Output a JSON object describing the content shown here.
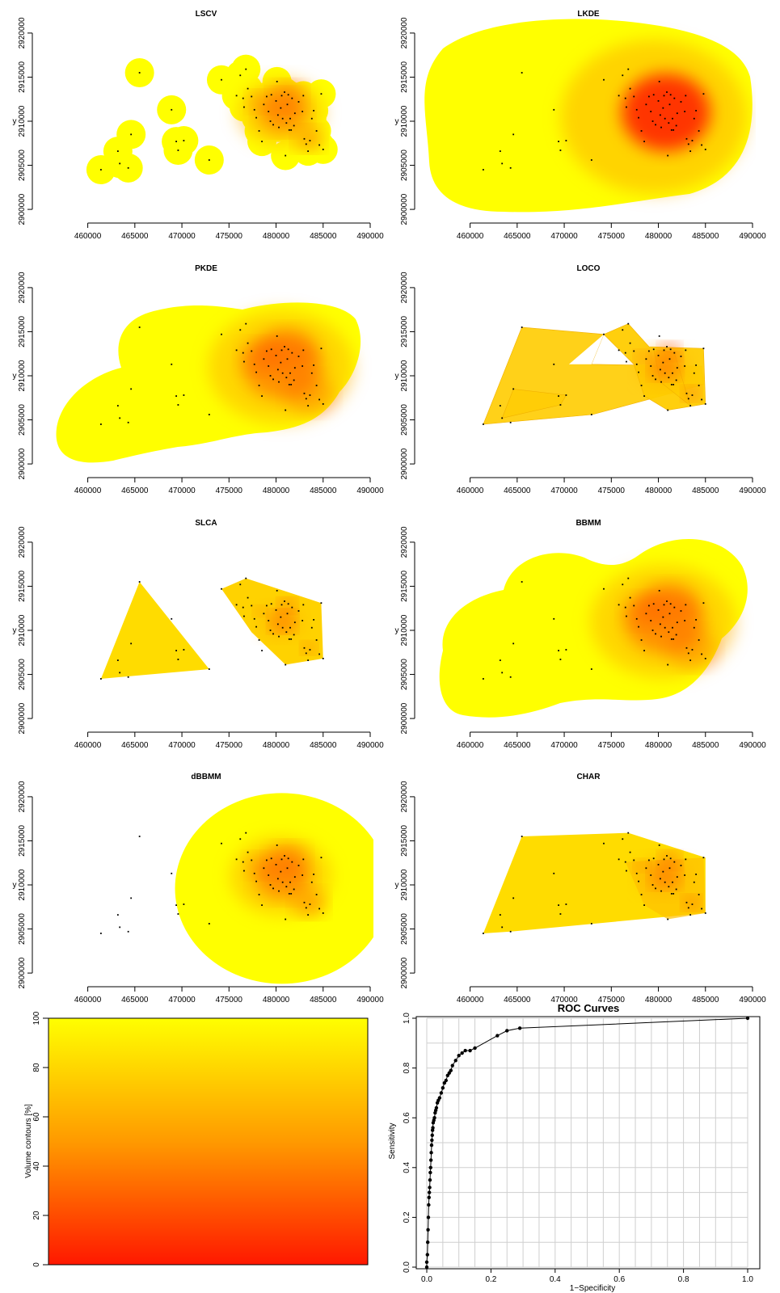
{
  "colors": {
    "low": "#ffff00",
    "mid": "#ffb000",
    "high": "#ff0000",
    "point": "#000000",
    "grid": "#cfcfcf"
  },
  "map_axes": {
    "xlim": [
      456000,
      490000
    ],
    "ylim": [
      2899000,
      2921000
    ],
    "x_ticks": [
      "460000",
      "465000",
      "470000",
      "475000",
      "480000",
      "485000",
      "490000"
    ],
    "y_ticks": [
      "2900000",
      "2905000",
      "2910000",
      "2915000",
      "2920000"
    ],
    "ylabel": "y"
  },
  "points": [
    [
      461400,
      2904500
    ],
    [
      463200,
      2906600
    ],
    [
      463400,
      2905200
    ],
    [
      464300,
      2904700
    ],
    [
      464600,
      2908500
    ],
    [
      465500,
      2915500
    ],
    [
      468900,
      2911300
    ],
    [
      469400,
      2907700
    ],
    [
      469600,
      2906700
    ],
    [
      470200,
      2907800
    ],
    [
      472900,
      2905600
    ],
    [
      474200,
      2914700
    ],
    [
      475800,
      2912900
    ],
    [
      476200,
      2915200
    ],
    [
      476500,
      2912600
    ],
    [
      476600,
      2911600
    ],
    [
      476800,
      2915900
    ],
    [
      477000,
      2913700
    ],
    [
      477400,
      2912800
    ],
    [
      477700,
      2911300
    ],
    [
      477900,
      2910400
    ],
    [
      478200,
      2908900
    ],
    [
      478500,
      2907700
    ],
    [
      478700,
      2911900
    ],
    [
      479000,
      2912800
    ],
    [
      479200,
      2911100
    ],
    [
      479400,
      2910000
    ],
    [
      479500,
      2913000
    ],
    [
      479700,
      2909600
    ],
    [
      480000,
      2912300
    ],
    [
      480200,
      2910700
    ],
    [
      480300,
      2909300
    ],
    [
      480500,
      2911500
    ],
    [
      480600,
      2912900
    ],
    [
      480700,
      2910300
    ],
    [
      480900,
      2913300
    ],
    [
      481000,
      2906100
    ],
    [
      481100,
      2909800
    ],
    [
      481200,
      2911900
    ],
    [
      481300,
      2913000
    ],
    [
      481400,
      2909000
    ],
    [
      481500,
      2910300
    ],
    [
      481700,
      2912600
    ],
    [
      481900,
      2909500
    ],
    [
      482000,
      2910900
    ],
    [
      482400,
      2912200
    ],
    [
      482800,
      2911100
    ],
    [
      483000,
      2908000
    ],
    [
      483200,
      2907400
    ],
    [
      483400,
      2906600
    ],
    [
      483600,
      2907800
    ],
    [
      483800,
      2910300
    ],
    [
      484000,
      2911200
    ],
    [
      484300,
      2908900
    ],
    [
      484600,
      2907300
    ],
    [
      484800,
      2913100
    ],
    [
      485000,
      2906800
    ],
    [
      480100,
      2914500
    ],
    [
      482900,
      2912900
    ],
    [
      481600,
      2909000
    ]
  ],
  "panels": [
    {
      "id": "lscv",
      "title": "LSCV",
      "type": "lscv"
    },
    {
      "id": "lkde",
      "title": "LKDE",
      "type": "lkde"
    },
    {
      "id": "pkde",
      "title": "PKDE",
      "type": "pkde"
    },
    {
      "id": "loco",
      "title": "LOCO",
      "type": "loco"
    },
    {
      "id": "slca",
      "title": "SLCA",
      "type": "slca"
    },
    {
      "id": "bbmm",
      "title": "BBMM",
      "type": "bbmm"
    },
    {
      "id": "dbbmm",
      "title": "dBBMM",
      "type": "dbbmm"
    },
    {
      "id": "char",
      "title": "CHAR",
      "type": "char"
    }
  ],
  "legend": {
    "ylabel": "Volume contours [%]",
    "ticks": [
      "0",
      "20",
      "40",
      "60",
      "80",
      "100"
    ]
  },
  "chart_data": [
    {
      "type": "line",
      "title": "ROC Curves",
      "xlabel": "1−Specificity",
      "ylabel": "Sensitivity",
      "xlim": [
        0,
        1
      ],
      "ylim": [
        0,
        1
      ],
      "grid": true,
      "x_ticks": [
        "0.0",
        "0.2",
        "0.4",
        "0.6",
        "0.8",
        "1.0"
      ],
      "y_ticks": [
        "0.0",
        "0.2",
        "0.4",
        "0.6",
        "0.8",
        "1.0"
      ],
      "x": [
        0.0,
        0.0,
        0.002,
        0.003,
        0.004,
        0.005,
        0.006,
        0.007,
        0.008,
        0.009,
        0.01,
        0.011,
        0.012,
        0.013,
        0.014,
        0.015,
        0.016,
        0.017,
        0.018,
        0.019,
        0.02,
        0.022,
        0.024,
        0.026,
        0.028,
        0.03,
        0.033,
        0.036,
        0.04,
        0.045,
        0.05,
        0.055,
        0.06,
        0.065,
        0.07,
        0.075,
        0.08,
        0.09,
        0.1,
        0.11,
        0.12,
        0.135,
        0.15,
        0.22,
        0.25,
        0.29,
        1.0
      ],
      "y": [
        0.0,
        0.02,
        0.05,
        0.1,
        0.15,
        0.2,
        0.25,
        0.28,
        0.3,
        0.32,
        0.35,
        0.38,
        0.4,
        0.43,
        0.46,
        0.49,
        0.51,
        0.53,
        0.55,
        0.56,
        0.58,
        0.59,
        0.6,
        0.62,
        0.63,
        0.64,
        0.66,
        0.67,
        0.68,
        0.7,
        0.72,
        0.74,
        0.75,
        0.77,
        0.78,
        0.79,
        0.81,
        0.83,
        0.85,
        0.86,
        0.87,
        0.87,
        0.88,
        0.93,
        0.95,
        0.96,
        1.0
      ]
    }
  ]
}
